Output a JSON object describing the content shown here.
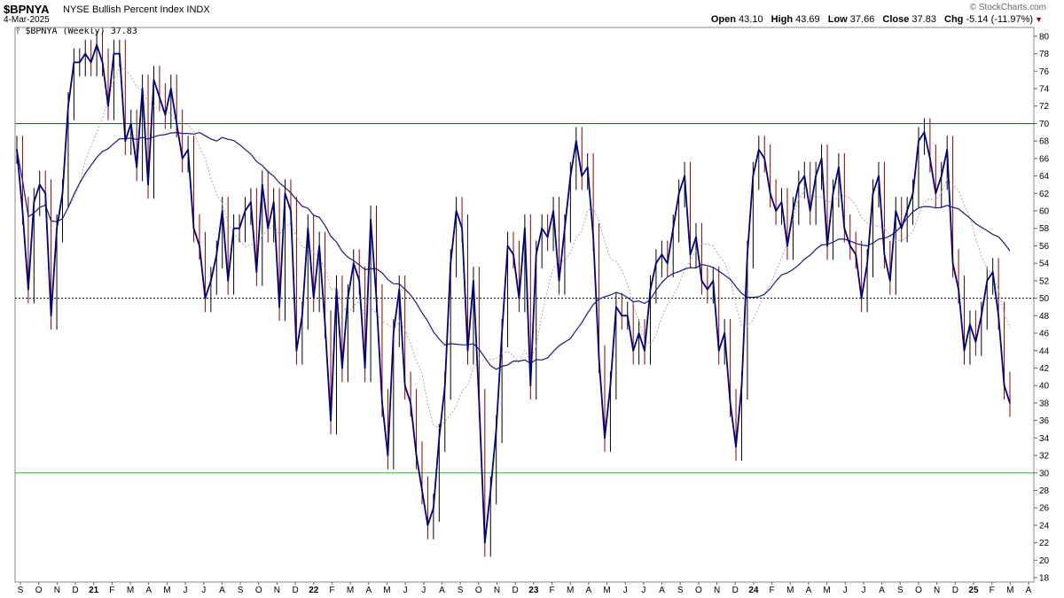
{
  "header": {
    "symbol": "$BPNYA",
    "description": "NYSE Bullish Percent Index",
    "exchange": "INDX",
    "date": "4-Mar-2025",
    "brand": "© StockCharts.com",
    "ohlc": {
      "open_label": "Open",
      "open": "43.10",
      "high_label": "High",
      "high": "43.69",
      "low_label": "Low",
      "low": "37.66",
      "close_label": "Close",
      "close": "37.83",
      "chg_label": "Chg",
      "chg": "-5.14 (-11.97%)"
    }
  },
  "legend": {
    "text": "$BPNYA (Weekly) 37.83"
  },
  "colors": {
    "price": "#000080",
    "wick_up": "#000000",
    "wick_down": "#8b0000",
    "ma_long": "#1a1a80",
    "ma_short": "#aaaaaa",
    "line70": "#9b1c2e",
    "line30": "#22bb22",
    "line50": "#000000"
  },
  "chart_data": {
    "type": "line",
    "title": "$BPNYA (Weekly) 37.83",
    "ylim": [
      17.5,
      81
    ],
    "yticks": [
      18,
      20,
      22,
      24,
      26,
      28,
      30,
      32,
      34,
      36,
      38,
      40,
      42,
      44,
      46,
      48,
      50,
      52,
      54,
      56,
      58,
      60,
      62,
      64,
      66,
      68,
      70,
      72,
      74,
      76,
      78,
      80
    ],
    "xtick_labels": [
      "S",
      "O",
      "N",
      "D",
      "21",
      "F",
      "M",
      "A",
      "M",
      "J",
      "J",
      "A",
      "S",
      "O",
      "N",
      "D",
      "22",
      "F",
      "M",
      "A",
      "M",
      "J",
      "J",
      "A",
      "S",
      "O",
      "N",
      "D",
      "23",
      "F",
      "M",
      "A",
      "M",
      "J",
      "J",
      "A",
      "S",
      "O",
      "N",
      "D",
      "24",
      "F",
      "M",
      "A",
      "M",
      "J",
      "J",
      "A",
      "S",
      "O",
      "N",
      "D",
      "25",
      "F",
      "M",
      "A"
    ],
    "reference_lines": [
      70,
      50,
      30
    ],
    "series": [
      {
        "values": [
          67,
          60,
          51,
          61,
          63,
          62,
          48,
          58,
          62,
          72,
          77,
          77,
          78,
          77,
          79,
          77,
          72,
          78,
          78,
          68,
          70,
          65,
          74,
          63,
          75,
          73,
          71,
          74,
          70,
          66,
          67,
          58,
          56,
          50,
          52,
          55,
          60,
          52,
          58,
          58,
          60,
          61,
          53,
          63,
          58,
          61,
          49,
          62,
          60,
          44,
          48,
          58,
          50,
          56,
          47,
          36,
          51,
          42,
          50,
          54,
          52,
          42,
          59,
          50,
          38,
          32,
          46,
          51,
          40,
          38,
          32,
          28,
          24,
          26,
          34,
          40,
          54,
          60,
          58,
          44,
          52,
          38,
          22,
          28,
          35,
          46,
          56,
          55,
          50,
          58,
          40,
          55,
          58,
          57,
          60,
          52,
          58,
          64,
          68,
          64,
          65,
          57,
          43,
          34,
          40,
          49,
          48,
          48,
          44,
          46,
          44,
          51,
          54,
          55,
          54,
          58,
          62,
          64,
          55,
          57,
          52,
          51,
          52,
          44,
          46,
          38,
          33,
          40,
          55,
          64,
          67,
          66,
          62,
          60,
          61,
          56,
          60,
          63,
          64,
          60,
          64,
          66,
          56,
          62,
          65,
          58,
          56,
          55,
          50,
          54,
          62,
          64,
          55,
          52,
          60,
          58,
          60,
          62,
          68,
          69,
          66,
          62,
          64,
          67,
          54,
          51,
          44,
          47,
          45,
          48,
          52,
          53,
          48,
          40,
          38
        ]
      }
    ]
  }
}
